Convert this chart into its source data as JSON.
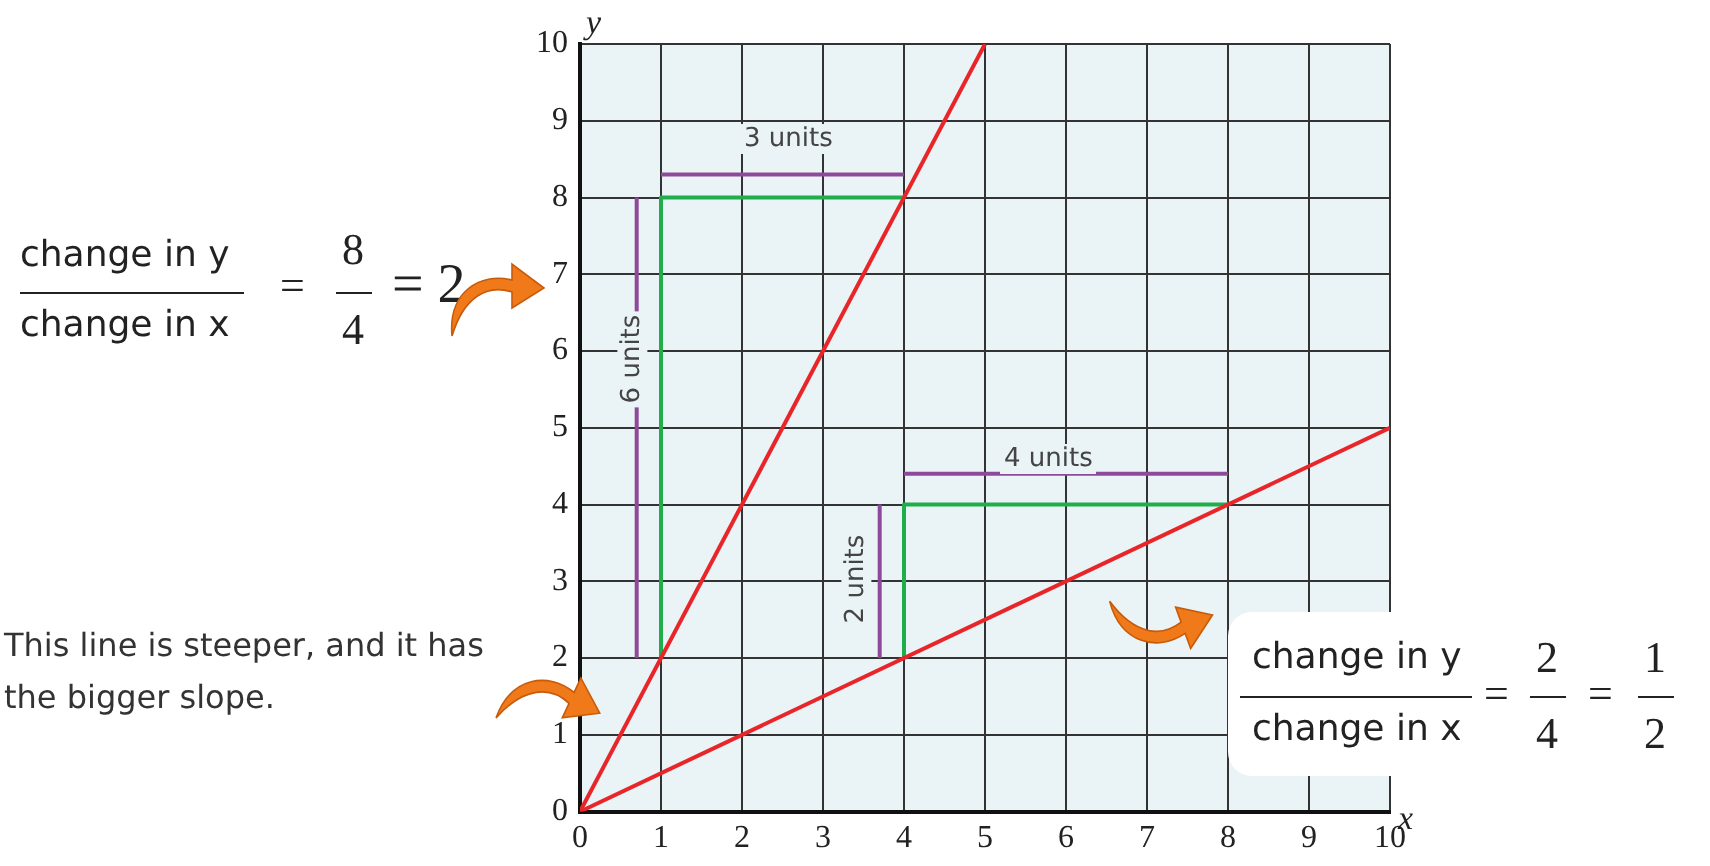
{
  "chart_data": {
    "type": "line",
    "xlabel": "x",
    "ylabel": "y",
    "xlim": [
      0,
      10
    ],
    "ylim": [
      0,
      10
    ],
    "xticks": [
      0,
      1,
      2,
      3,
      4,
      5,
      6,
      7,
      8,
      9,
      10
    ],
    "yticks": [
      0,
      1,
      2,
      3,
      4,
      5,
      6,
      7,
      8,
      9,
      10
    ],
    "grid": true,
    "legend": false,
    "marker": "none",
    "line_style": "solid",
    "series": [
      {
        "color": "#e8262a",
        "x": [
          0,
          5
        ],
        "values": [
          0,
          10
        ]
      },
      {
        "color": "#e8262a",
        "x": [
          0,
          10
        ],
        "values": [
          0,
          5
        ]
      },
      {
        "color": "#1fae4b",
        "x": [
          1,
          1,
          4
        ],
        "values": [
          2,
          8,
          8
        ]
      },
      {
        "color": "#1fae4b",
        "x": [
          4,
          4,
          8
        ],
        "values": [
          2,
          4,
          4
        ]
      },
      {
        "color": "#8e4a9a",
        "x": [
          1,
          4
        ],
        "values": [
          8.3,
          8.3
        ]
      },
      {
        "color": "#8e4a9a",
        "x": [
          0.7,
          0.7
        ],
        "values": [
          2,
          8
        ]
      },
      {
        "color": "#8e4a9a",
        "x": [
          4,
          8
        ],
        "values": [
          4.4,
          4.4
        ]
      },
      {
        "color": "#8e4a9a",
        "x": [
          3.7,
          3.7
        ],
        "values": [
          2,
          4
        ]
      }
    ],
    "annotations": [
      "3 units",
      "6 units",
      "4 units",
      "2 units",
      "change in y",
      "change in x",
      "=",
      "8",
      "4",
      "= 2",
      "This line is steeper, and it has the bigger slope.",
      "change in y",
      "change in x",
      "=",
      "2",
      "4",
      "=",
      "1",
      "2"
    ]
  }
}
